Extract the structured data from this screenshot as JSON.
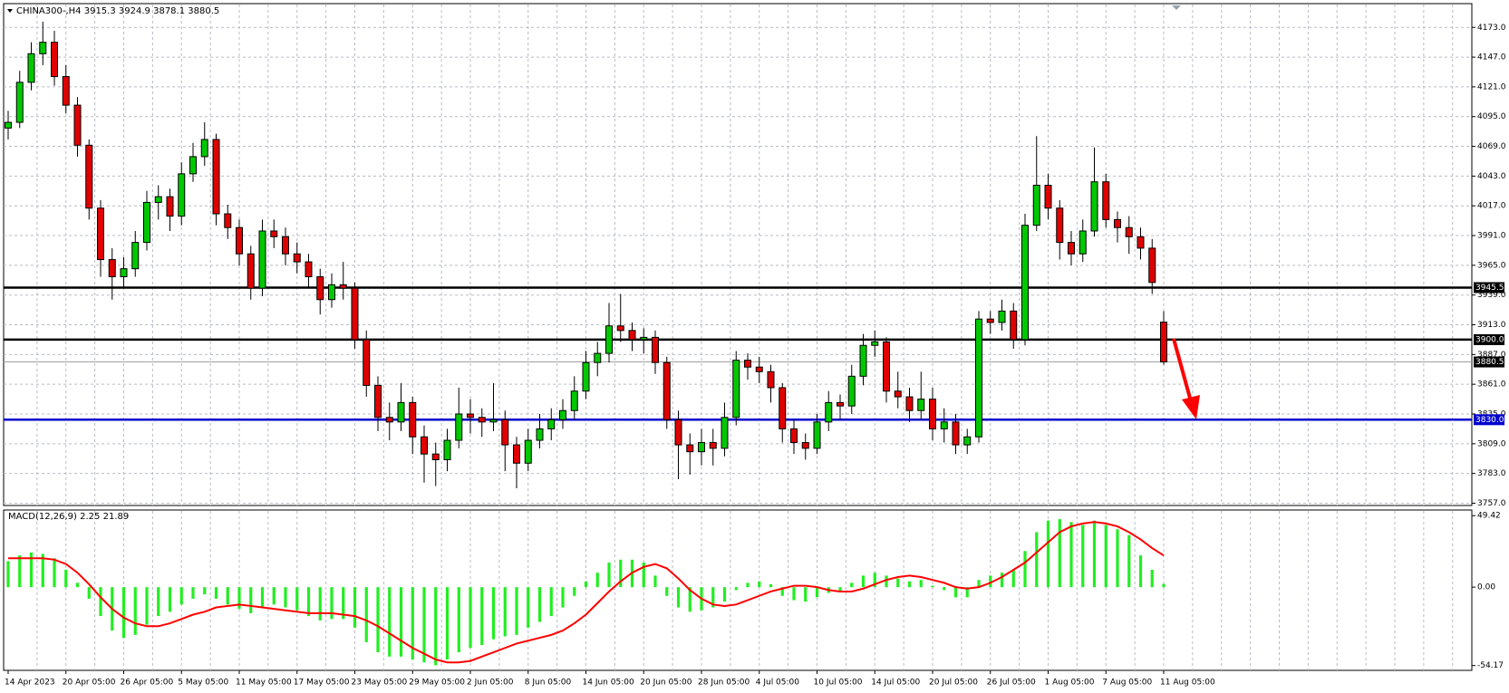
{
  "chart_data": [
    {
      "type": "candlestick",
      "symbol": "CHINA300-,H4",
      "categories": [
        "14 Apr 2023",
        null,
        null,
        null,
        null,
        "20 Apr 05:00",
        null,
        null,
        null,
        null,
        "26 Apr 05:00",
        null,
        null,
        null,
        null,
        "5 May 05:00",
        null,
        null,
        null,
        null,
        "11 May 05:00",
        null,
        null,
        null,
        null,
        "17 May 05:00",
        null,
        null,
        null,
        null,
        "23 May 05:00",
        null,
        null,
        null,
        null,
        "29 May 05:00",
        null,
        null,
        null,
        null,
        "2 Jun 05:00",
        null,
        null,
        null,
        null,
        "8 Jun 05:00",
        null,
        null,
        null,
        null,
        "14 Jun 05:00",
        null,
        null,
        null,
        null,
        "20 Jun 05:00",
        null,
        null,
        null,
        null,
        "28 Jun 05:00",
        null,
        null,
        null,
        null,
        "4 Jul 05:00",
        null,
        null,
        null,
        null,
        "10 Jul 05:00",
        null,
        null,
        null,
        null,
        "14 Jul 05:00",
        null,
        null,
        null,
        null,
        "20 Jul 05:00",
        null,
        null,
        null,
        null,
        "26 Jul 05:00",
        null,
        null,
        null,
        null,
        "1 Aug 05:00",
        null,
        null,
        null,
        null,
        "7 Aug 05:00",
        null,
        null,
        null,
        null,
        "11 Aug 05:00"
      ],
      "candles": [
        [
          4085,
          4100,
          4075,
          4090
        ],
        [
          4090,
          4135,
          4085,
          4125
        ],
        [
          4125,
          4160,
          4118,
          4150
        ],
        [
          4150,
          4178,
          4140,
          4160
        ],
        [
          4160,
          4170,
          4122,
          4130
        ],
        [
          4130,
          4140,
          4098,
          4105
        ],
        [
          4105,
          4112,
          4060,
          4070
        ],
        [
          4070,
          4075,
          4005,
          4015
        ],
        [
          4015,
          4022,
          3955,
          3970
        ],
        [
          3970,
          3980,
          3935,
          3955
        ],
        [
          3955,
          3972,
          3945,
          3962
        ],
        [
          3962,
          3995,
          3955,
          3985
        ],
        [
          3985,
          4030,
          3978,
          4020
        ],
        [
          4020,
          4035,
          4005,
          4025
        ],
        [
          4025,
          4032,
          3995,
          4008
        ],
        [
          4008,
          4055,
          4000,
          4045
        ],
        [
          4045,
          4072,
          4038,
          4060
        ],
        [
          4060,
          4090,
          4052,
          4075
        ],
        [
          4075,
          4080,
          4000,
          4010
        ],
        [
          4010,
          4018,
          3988,
          3998
        ],
        [
          3998,
          4005,
          3965,
          3975
        ],
        [
          3975,
          3982,
          3935,
          3945
        ],
        [
          3945,
          4005,
          3938,
          3995
        ],
        [
          3995,
          4005,
          3980,
          3990
        ],
        [
          3990,
          3998,
          3965,
          3975
        ],
        [
          3975,
          3985,
          3958,
          3968
        ],
        [
          3968,
          3975,
          3945,
          3955
        ],
        [
          3955,
          3962,
          3922,
          3935
        ],
        [
          3935,
          3958,
          3928,
          3948
        ],
        [
          3948,
          3968,
          3935,
          3945
        ],
        [
          3945,
          3950,
          3892,
          3900
        ],
        [
          3900,
          3908,
          3850,
          3860
        ],
        [
          3860,
          3868,
          3820,
          3832
        ],
        [
          3832,
          3845,
          3812,
          3828
        ],
        [
          3828,
          3862,
          3820,
          3845
        ],
        [
          3845,
          3850,
          3800,
          3815
        ],
        [
          3815,
          3825,
          3775,
          3800
        ],
        [
          3800,
          3810,
          3772,
          3795
        ],
        [
          3795,
          3822,
          3785,
          3812
        ],
        [
          3812,
          3858,
          3805,
          3835
        ],
        [
          3835,
          3848,
          3818,
          3832
        ],
        [
          3832,
          3840,
          3815,
          3828
        ],
        [
          3828,
          3862,
          3820,
          3830
        ],
        [
          3830,
          3838,
          3785,
          3808
        ],
        [
          3808,
          3815,
          3770,
          3792
        ],
        [
          3792,
          3822,
          3785,
          3812
        ],
        [
          3812,
          3835,
          3805,
          3822
        ],
        [
          3822,
          3840,
          3812,
          3830
        ],
        [
          3830,
          3848,
          3822,
          3838
        ],
        [
          3838,
          3868,
          3830,
          3855
        ],
        [
          3855,
          3890,
          3848,
          3880
        ],
        [
          3880,
          3898,
          3868,
          3888
        ],
        [
          3888,
          3932,
          3880,
          3912
        ],
        [
          3912,
          3940,
          3898,
          3908
        ],
        [
          3908,
          3915,
          3890,
          3900
        ],
        [
          3900,
          3910,
          3888,
          3902
        ],
        [
          3902,
          3908,
          3870,
          3880
        ],
        [
          3880,
          3885,
          3822,
          3830
        ],
        [
          3830,
          3838,
          3778,
          3808
        ],
        [
          3808,
          3818,
          3782,
          3802
        ],
        [
          3802,
          3822,
          3790,
          3810
        ],
        [
          3810,
          3822,
          3790,
          3805
        ],
        [
          3805,
          3845,
          3798,
          3832
        ],
        [
          3832,
          3890,
          3825,
          3882
        ],
        [
          3882,
          3888,
          3865,
          3876
        ],
        [
          3876,
          3885,
          3862,
          3872
        ],
        [
          3872,
          3878,
          3845,
          3858
        ],
        [
          3858,
          3862,
          3810,
          3822
        ],
        [
          3822,
          3830,
          3800,
          3810
        ],
        [
          3810,
          3818,
          3795,
          3805
        ],
        [
          3805,
          3835,
          3800,
          3828
        ],
        [
          3828,
          3855,
          3820,
          3845
        ],
        [
          3845,
          3852,
          3830,
          3842
        ],
        [
          3842,
          3878,
          3835,
          3868
        ],
        [
          3868,
          3905,
          3860,
          3895
        ],
        [
          3895,
          3908,
          3885,
          3898
        ],
        [
          3898,
          3902,
          3845,
          3855
        ],
        [
          3855,
          3872,
          3840,
          3850
        ],
        [
          3850,
          3858,
          3828,
          3838
        ],
        [
          3838,
          3872,
          3830,
          3848
        ],
        [
          3848,
          3858,
          3812,
          3822
        ],
        [
          3822,
          3840,
          3810,
          3828
        ],
        [
          3828,
          3835,
          3800,
          3808
        ],
        [
          3808,
          3822,
          3800,
          3815
        ],
        [
          3815,
          3925,
          3810,
          3918
        ],
        [
          3918,
          3925,
          3905,
          3915
        ],
        [
          3915,
          3935,
          3908,
          3925
        ],
        [
          3925,
          3932,
          3892,
          3900
        ],
        [
          3900,
          4010,
          3895,
          4000
        ],
        [
          4000,
          4078,
          3995,
          4035
        ],
        [
          4035,
          4045,
          4005,
          4015
        ],
        [
          4015,
          4022,
          3970,
          3985
        ],
        [
          3985,
          3995,
          3965,
          3975
        ],
        [
          3975,
          4005,
          3968,
          3995
        ],
        [
          3995,
          4068,
          3990,
          4038
        ],
        [
          4038,
          4045,
          3998,
          4005
        ],
        [
          4005,
          4012,
          3985,
          3998
        ],
        [
          3998,
          4008,
          3975,
          3990
        ],
        [
          3990,
          3998,
          3970,
          3980
        ],
        [
          3980,
          3988,
          3940,
          3950
        ],
        [
          3915.3,
          3924.9,
          3878.1,
          3880.5
        ]
      ],
      "up_color": "#00c800",
      "down_color": "#e00000",
      "ylim": [
        3755,
        4193
      ],
      "yticks": [
        {
          "value": 3757,
          "label": "3757.0"
        },
        {
          "value": 3783,
          "label": "3783.0"
        },
        {
          "value": 3809,
          "label": "3809.0"
        },
        {
          "value": 3835,
          "label": "3835.0"
        },
        {
          "value": 3861,
          "label": "3861.0"
        },
        {
          "value": 3887,
          "label": "3887.0"
        },
        {
          "value": 3913,
          "label": "3913.0"
        },
        {
          "value": 3939,
          "label": "3939.0"
        },
        {
          "value": 3965,
          "label": "3965.0"
        },
        {
          "value": 3991,
          "label": "3991.0"
        },
        {
          "value": 4017,
          "label": "4017.0"
        },
        {
          "value": 4043,
          "label": "4043.0"
        },
        {
          "value": 4069,
          "label": "4069.0"
        },
        {
          "value": 4095,
          "label": "4095.0"
        },
        {
          "value": 4121,
          "label": "4121.0"
        },
        {
          "value": 4147,
          "label": "4147.0"
        },
        {
          "value": 4173,
          "label": "4173.0"
        }
      ],
      "levels": [
        {
          "value": 3945.5,
          "label": "3945.5",
          "color": "#000000"
        },
        {
          "value": 3900,
          "label": "3900.0",
          "color": "#000000"
        },
        {
          "value": 3830,
          "label": "3830.0",
          "color": "#0000cd"
        }
      ],
      "bid": {
        "value": 3880.5,
        "label": "3880.5"
      },
      "grid": true
    },
    {
      "type": "macd",
      "label": "MACD(12,26,9)",
      "histogram": {
        "color": "#22ee22",
        "values": [
          18,
          22,
          24,
          23,
          20,
          12,
          3,
          -8,
          -20,
          -30,
          -35,
          -33,
          -26,
          -20,
          -17,
          -12,
          -8,
          -5,
          -8,
          -12,
          -15,
          -18,
          -14,
          -12,
          -14,
          -16,
          -20,
          -23,
          -22,
          -22,
          -28,
          -38,
          -45,
          -48,
          -48,
          -50,
          -52,
          -54,
          -50,
          -45,
          -42,
          -40,
          -36,
          -34,
          -33,
          -28,
          -24,
          -20,
          -14,
          -6,
          4,
          10,
          17,
          19,
          19,
          17,
          8,
          -6,
          -14,
          -17,
          -16,
          -14,
          -10,
          -2,
          3,
          4,
          2,
          -6,
          -9,
          -10,
          -7,
          -4,
          -3,
          3,
          8,
          10,
          8,
          6,
          4,
          5,
          1,
          -2,
          -7,
          -7,
          5,
          8,
          10,
          12,
          25,
          38,
          46,
          47,
          45,
          43,
          46,
          43,
          40,
          36,
          22,
          12,
          2.25
        ]
      },
      "signal": {
        "color": "#ff0000",
        "values": [
          20,
          20,
          20,
          20,
          19,
          16,
          10,
          2,
          -7,
          -15,
          -21,
          -25,
          -27,
          -27,
          -25,
          -22,
          -19,
          -17,
          -14,
          -13,
          -12,
          -13,
          -14,
          -15,
          -16,
          -17,
          -18,
          -18,
          -18,
          -19,
          -20,
          -23,
          -27,
          -32,
          -37,
          -42,
          -46,
          -50,
          -52,
          -52,
          -51,
          -48,
          -45,
          -42,
          -39,
          -37,
          -35,
          -33,
          -30,
          -25,
          -19,
          -11,
          -3,
          4,
          10,
          14,
          16,
          13,
          6,
          -2,
          -8,
          -12,
          -13,
          -12,
          -9,
          -6,
          -3,
          -1,
          1,
          1,
          0,
          -2,
          -3,
          -3,
          -1,
          2,
          5,
          7,
          8,
          7,
          5,
          3,
          0,
          -1,
          0,
          3,
          7,
          12,
          17,
          24,
          31,
          38,
          42,
          44,
          45,
          44,
          42,
          38,
          33,
          27,
          21.89
        ]
      },
      "ylim": [
        -57.5,
        52.7
      ],
      "yticks": [
        -54.17,
        {
          "value": 0,
          "label": "0.00"
        },
        49.42
      ]
    }
  ]
}
